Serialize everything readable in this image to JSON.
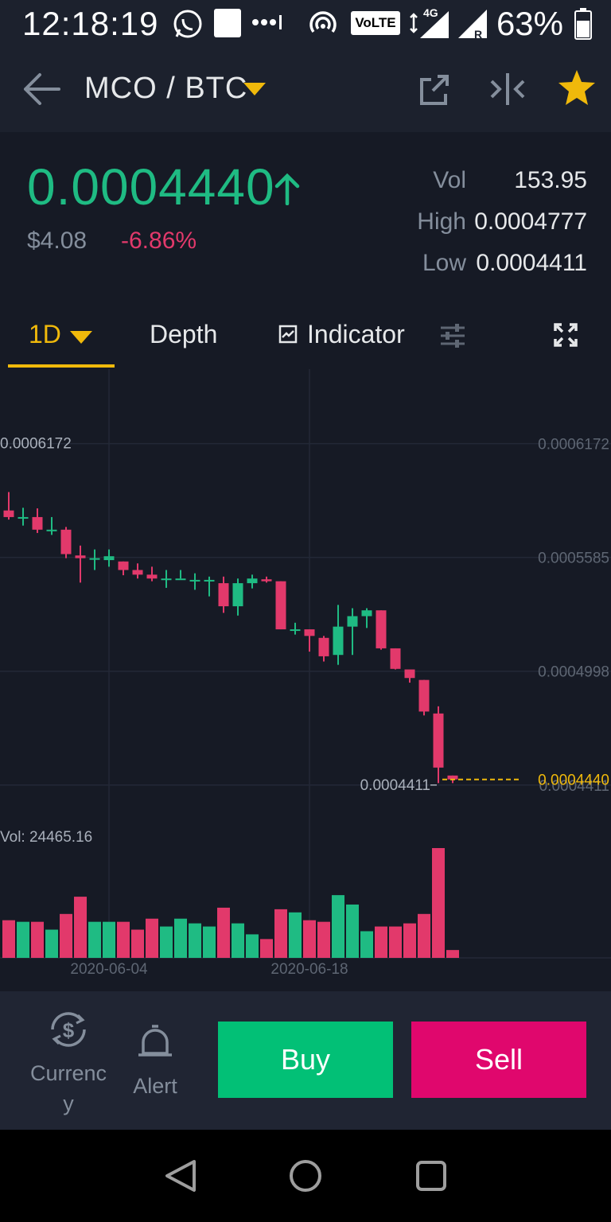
{
  "status_bar": {
    "time": "12:18:19",
    "battery": "63%",
    "network_badge": "VoLTE",
    "network_type": "4G"
  },
  "header": {
    "pair": "MCO / BTC"
  },
  "ticker": {
    "last_price": "0.0004440",
    "usd_price": "$4.08",
    "change_pct": "-6.86%",
    "stats": [
      {
        "label": "Vol",
        "value": "153.95"
      },
      {
        "label": "High",
        "value": "0.0004777"
      },
      {
        "label": "Low",
        "value": "0.0004411"
      }
    ]
  },
  "tabs": {
    "interval": "1D",
    "depth": "Depth",
    "indicator": "Indicator"
  },
  "colors": {
    "up": "#1fbb83",
    "down": "#e2396b",
    "accent": "#f0b90b",
    "background": "#161a25"
  },
  "chart_data": {
    "type": "candlestick",
    "price_axis": [
      "0.0006172",
      "0.0005585",
      "0.0004998",
      "0.0004411"
    ],
    "price_max_label": "0.0006172",
    "price_min_label": "0.0004411",
    "last_price_label": "0.0004440",
    "volume_label": "Vol: 24465.16",
    "x_dates": [
      "2020-06-04",
      "2020-06-18"
    ],
    "ylim": [
      0.000425,
      0.00064
    ],
    "vol_max": 700,
    "candles": [
      {
        "o": 0.0005827,
        "h": 0.0005922,
        "l": 0.000578,
        "c": 0.0005793,
        "v": 240
      },
      {
        "o": 0.0005793,
        "h": 0.0005841,
        "l": 0.0005749,
        "c": 0.0005793,
        "v": 230
      },
      {
        "o": 0.0005793,
        "h": 0.0005838,
        "l": 0.0005711,
        "c": 0.0005728,
        "v": 230
      },
      {
        "o": 0.0005728,
        "h": 0.0005793,
        "l": 0.0005701,
        "c": 0.0005728,
        "v": 180
      },
      {
        "o": 0.0005728,
        "h": 0.0005742,
        "l": 0.0005581,
        "c": 0.0005602,
        "v": 280
      },
      {
        "o": 0.0005595,
        "h": 0.0005646,
        "l": 0.0005455,
        "c": 0.0005581,
        "v": 390
      },
      {
        "o": 0.0005581,
        "h": 0.0005626,
        "l": 0.000552,
        "c": 0.0005581,
        "v": 230
      },
      {
        "o": 0.0005571,
        "h": 0.0005626,
        "l": 0.0005537,
        "c": 0.0005591,
        "v": 230
      },
      {
        "o": 0.0005564,
        "h": 0.0005564,
        "l": 0.0005493,
        "c": 0.000552,
        "v": 230
      },
      {
        "o": 0.000552,
        "h": 0.0005554,
        "l": 0.0005476,
        "c": 0.0005496,
        "v": 180
      },
      {
        "o": 0.0005496,
        "h": 0.0005537,
        "l": 0.0005462,
        "c": 0.0005476,
        "v": 250
      },
      {
        "o": 0.0005476,
        "h": 0.000552,
        "l": 0.0005428,
        "c": 0.0005476,
        "v": 200
      },
      {
        "o": 0.0005476,
        "h": 0.000552,
        "l": 0.0005476,
        "c": 0.0005476,
        "v": 250
      },
      {
        "o": 0.0005469,
        "h": 0.0005503,
        "l": 0.0005418,
        "c": 0.0005469,
        "v": 220
      },
      {
        "o": 0.0005469,
        "h": 0.0005486,
        "l": 0.0005384,
        "c": 0.0005469,
        "v": 200
      },
      {
        "o": 0.0005452,
        "h": 0.0005486,
        "l": 0.0005299,
        "c": 0.0005333,
        "v": 320
      },
      {
        "o": 0.0005333,
        "h": 0.0005476,
        "l": 0.0005285,
        "c": 0.0005452,
        "v": 220
      },
      {
        "o": 0.0005452,
        "h": 0.0005496,
        "l": 0.0005425,
        "c": 0.0005476,
        "v": 150
      },
      {
        "o": 0.0005472,
        "h": 0.0005486,
        "l": 0.0005455,
        "c": 0.0005462,
        "v": 120
      },
      {
        "o": 0.0005462,
        "h": 0.0005462,
        "l": 0.0005214,
        "c": 0.0005214,
        "v": 310
      },
      {
        "o": 0.0005214,
        "h": 0.0005248,
        "l": 0.0005187,
        "c": 0.0005214,
        "v": 290
      },
      {
        "o": 0.0005214,
        "h": 0.0005214,
        "l": 0.0005099,
        "c": 0.000518,
        "v": 240
      },
      {
        "o": 0.000517,
        "h": 0.000518,
        "l": 0.0005048,
        "c": 0.0005075,
        "v": 230
      },
      {
        "o": 0.0005082,
        "h": 0.000534,
        "l": 0.0005031,
        "c": 0.0005228,
        "v": 400
      },
      {
        "o": 0.0005228,
        "h": 0.0005323,
        "l": 0.0005082,
        "c": 0.0005282,
        "v": 340
      },
      {
        "o": 0.0005282,
        "h": 0.0005323,
        "l": 0.0005221,
        "c": 0.0005312,
        "v": 170
      },
      {
        "o": 0.0005312,
        "h": 0.0005312,
        "l": 0.0005109,
        "c": 0.0005116,
        "v": 200
      },
      {
        "o": 0.0005116,
        "h": 0.0005116,
        "l": 0.0005007,
        "c": 0.000501,
        "v": 200
      },
      {
        "o": 0.0005007,
        "h": 0.0005007,
        "l": 0.0004939,
        "c": 0.0004963,
        "v": 220
      },
      {
        "o": 0.0004953,
        "h": 0.0004953,
        "l": 0.000477,
        "c": 0.000479,
        "v": 280
      },
      {
        "o": 0.000478,
        "h": 0.0004817,
        "l": 0.0004421,
        "c": 0.0004501,
        "v": 700
      },
      {
        "o": 0.000446,
        "h": 0.000446,
        "l": 0.0004421,
        "c": 0.000444,
        "v": 50
      }
    ]
  },
  "bottom_bar": {
    "currency_label": "Currenc y",
    "alert_label": "Alert",
    "buy_label": "Buy",
    "sell_label": "Sell"
  }
}
